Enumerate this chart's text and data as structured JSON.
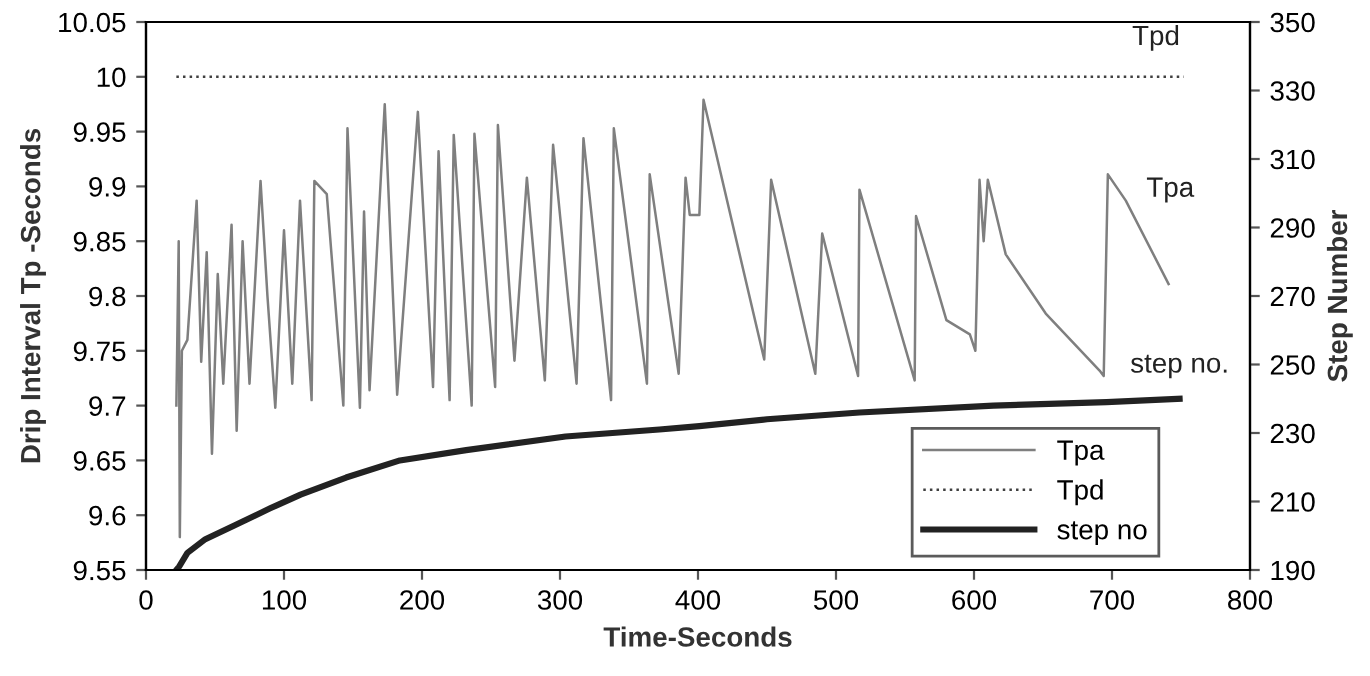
{
  "chart_data": {
    "type": "line",
    "xlabel": "Time-Seconds",
    "ylabel": "Drip Interval Tp -Seconds",
    "y2label": "Step Number",
    "xlim": [
      0,
      800
    ],
    "xticks": [
      0,
      100,
      200,
      300,
      400,
      500,
      600,
      700,
      800
    ],
    "ylim": [
      9.55,
      10.05
    ],
    "yticks": [
      9.55,
      9.6,
      9.65,
      9.7,
      9.75,
      9.8,
      9.85,
      9.9,
      9.95,
      10,
      10.05
    ],
    "y2lim": [
      190,
      350
    ],
    "y2ticks": [
      190,
      210,
      230,
      250,
      270,
      290,
      310,
      330,
      350
    ],
    "legend": "bottom right",
    "grid": false,
    "series": [
      {
        "name": "Tpa",
        "color": "#7f7f7f",
        "line_style": "solid",
        "x": [
          22,
          23.7,
          24.5,
          26,
          30,
          36.7,
          40,
          44,
          47.8,
          52,
          56,
          62,
          65.7,
          70,
          75,
          83,
          88,
          93.7,
          100,
          106,
          111.6,
          120,
          122,
          131,
          143,
          146,
          155,
          158,
          162,
          173,
          182,
          197,
          208,
          212,
          220,
          223,
          236,
          238,
          253,
          255,
          267,
          276,
          289,
          295,
          312,
          317,
          337,
          339,
          363,
          365,
          386,
          391,
          394,
          401,
          404,
          448,
          453,
          485,
          490,
          516,
          517,
          557,
          558,
          580,
          597,
          601,
          604,
          607,
          610,
          623,
          652,
          691,
          694,
          697,
          710,
          741
        ],
        "values": [
          9.7,
          9.85,
          9.58,
          9.75,
          9.76,
          9.887,
          9.74,
          9.84,
          9.656,
          9.82,
          9.72,
          9.865,
          9.677,
          9.85,
          9.72,
          9.905,
          9.8,
          9.698,
          9.86,
          9.72,
          9.887,
          9.705,
          9.905,
          9.893,
          9.7,
          9.953,
          9.698,
          9.877,
          9.714,
          9.975,
          9.71,
          9.968,
          9.717,
          9.932,
          9.705,
          9.947,
          9.7,
          9.948,
          9.717,
          9.956,
          9.741,
          9.908,
          9.723,
          9.938,
          9.72,
          9.944,
          9.705,
          9.953,
          9.72,
          9.911,
          9.729,
          9.908,
          9.874,
          9.874,
          9.979,
          9.742,
          9.906,
          9.729,
          9.857,
          9.727,
          9.897,
          9.723,
          9.873,
          9.778,
          9.765,
          9.75,
          9.906,
          9.85,
          9.906,
          9.838,
          9.784,
          9.732,
          9.727,
          9.911,
          9.887,
          9.811
        ]
      },
      {
        "name": "Tpd",
        "color": "#404040",
        "line_style": "dotted",
        "x": [
          22,
          752
        ],
        "values": [
          10,
          10
        ]
      },
      {
        "name": "step no",
        "color": "#222222",
        "line_style": "solid",
        "axis": "y2",
        "x": [
          22,
          24,
          30,
          43,
          64,
          90,
          112,
          145,
          184,
          232,
          304,
          372,
          401,
          450,
          517,
          614,
          696,
          749
        ],
        "values": [
          190,
          191,
          195,
          199,
          203,
          208,
          212,
          217,
          222,
          225,
          229,
          231,
          232,
          234,
          236,
          238,
          239,
          240
        ]
      }
    ],
    "annotations": [
      "Tpd",
      "Tpa",
      "step no."
    ]
  }
}
